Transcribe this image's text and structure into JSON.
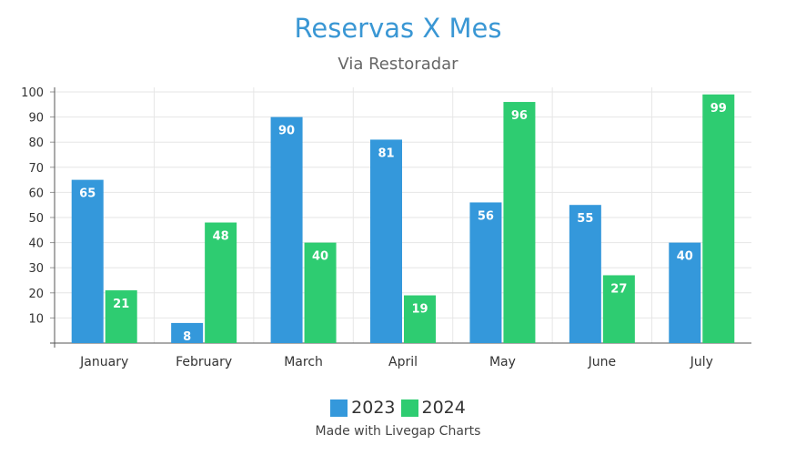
{
  "chart_data": {
    "type": "bar",
    "title": "Reservas X Mes",
    "subtitle": "Via Restoradar",
    "categories": [
      "January",
      "February",
      "March",
      "April",
      "May",
      "June",
      "July"
    ],
    "series": [
      {
        "name": "2023",
        "color": "#3498db",
        "values": [
          65,
          8,
          90,
          81,
          56,
          55,
          40
        ]
      },
      {
        "name": "2024",
        "color": "#2ecc71",
        "values": [
          21,
          48,
          40,
          19,
          96,
          27,
          99
        ]
      }
    ],
    "yticks": [
      "10",
      "20",
      "30",
      "40",
      "50",
      "60",
      "70",
      "80",
      "90",
      "100"
    ],
    "ylim": [
      0,
      100
    ],
    "grid": true,
    "legend_position": "bottom",
    "data_labels": true
  },
  "footer": {
    "credit": "Made with Livegap Charts"
  }
}
